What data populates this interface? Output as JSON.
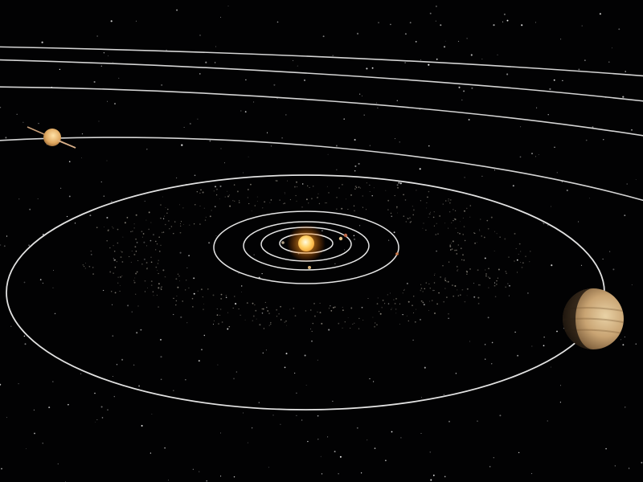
{
  "scene": {
    "subject": "solar-system-orbits",
    "background_color": "#020203",
    "orbit_color": "#d9d9d9",
    "sun_color": "#ffcf6a",
    "sun_glow_color": "#ff9a1f",
    "jupiter_color": "#cfa977",
    "saturn_color": "#e0a860",
    "asteroid_color": "#bdb6a8",
    "star_color": "#ffffff"
  },
  "bodies": [
    {
      "name": "sun",
      "icon": "sun-icon"
    },
    {
      "name": "inner-planets",
      "icon": "planet-icon"
    },
    {
      "name": "jupiter",
      "icon": "planet-icon"
    },
    {
      "name": "saturn",
      "icon": "ringed-planet-icon"
    }
  ]
}
